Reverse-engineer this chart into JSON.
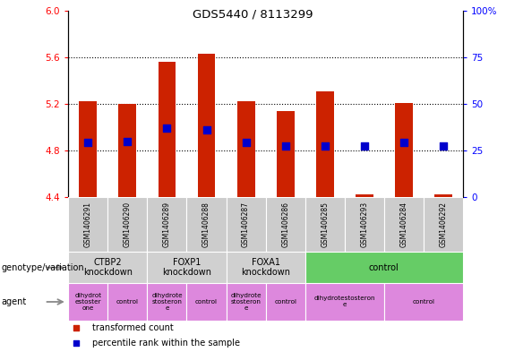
{
  "title": "GDS5440 / 8113299",
  "samples": [
    "GSM1406291",
    "GSM1406290",
    "GSM1406289",
    "GSM1406288",
    "GSM1406287",
    "GSM1406286",
    "GSM1406285",
    "GSM1406293",
    "GSM1406284",
    "GSM1406292"
  ],
  "red_values": [
    5.22,
    5.2,
    5.56,
    5.63,
    5.22,
    5.14,
    5.31,
    4.42,
    5.21,
    4.42
  ],
  "blue_values": [
    4.87,
    4.88,
    4.99,
    4.98,
    4.87,
    4.84,
    4.84,
    4.84,
    4.87,
    4.84
  ],
  "ymin": 4.4,
  "ymax": 6.0,
  "yticks_left": [
    4.4,
    4.8,
    5.2,
    5.6,
    6.0
  ],
  "right_ytick_vals": [
    0,
    25,
    50,
    75,
    100
  ],
  "dotted_lines": [
    4.8,
    5.2,
    5.6
  ],
  "genotype_groups": [
    {
      "label": "CTBP2\nknockdown",
      "start": 0,
      "end": 2,
      "color": "#d0d0d0"
    },
    {
      "label": "FOXP1\nknockdown",
      "start": 2,
      "end": 4,
      "color": "#d0d0d0"
    },
    {
      "label": "FOXA1\nknockdown",
      "start": 4,
      "end": 6,
      "color": "#d0d0d0"
    },
    {
      "label": "control",
      "start": 6,
      "end": 10,
      "color": "#66cc66"
    }
  ],
  "agent_groups": [
    {
      "label": "dihydrot\nestoster\none",
      "start": 0,
      "end": 1,
      "color": "#dd88dd"
    },
    {
      "label": "control",
      "start": 1,
      "end": 2,
      "color": "#dd88dd"
    },
    {
      "label": "dihydrote\nstosteron\ne",
      "start": 2,
      "end": 3,
      "color": "#dd88dd"
    },
    {
      "label": "control",
      "start": 3,
      "end": 4,
      "color": "#dd88dd"
    },
    {
      "label": "dihydrote\nstosteron\ne",
      "start": 4,
      "end": 5,
      "color": "#dd88dd"
    },
    {
      "label": "control",
      "start": 5,
      "end": 6,
      "color": "#dd88dd"
    },
    {
      "label": "dihydrotestosteron\ne",
      "start": 6,
      "end": 8,
      "color": "#dd88dd"
    },
    {
      "label": "control",
      "start": 8,
      "end": 10,
      "color": "#dd88dd"
    }
  ],
  "sample_bg_color": "#cccccc",
  "bar_color": "#cc2200",
  "dot_color": "#0000cc",
  "bar_width": 0.45,
  "dot_size": 28,
  "legend_items": [
    {
      "color": "#cc2200",
      "label": "transformed count"
    },
    {
      "color": "#0000cc",
      "label": "percentile rank within the sample"
    }
  ]
}
